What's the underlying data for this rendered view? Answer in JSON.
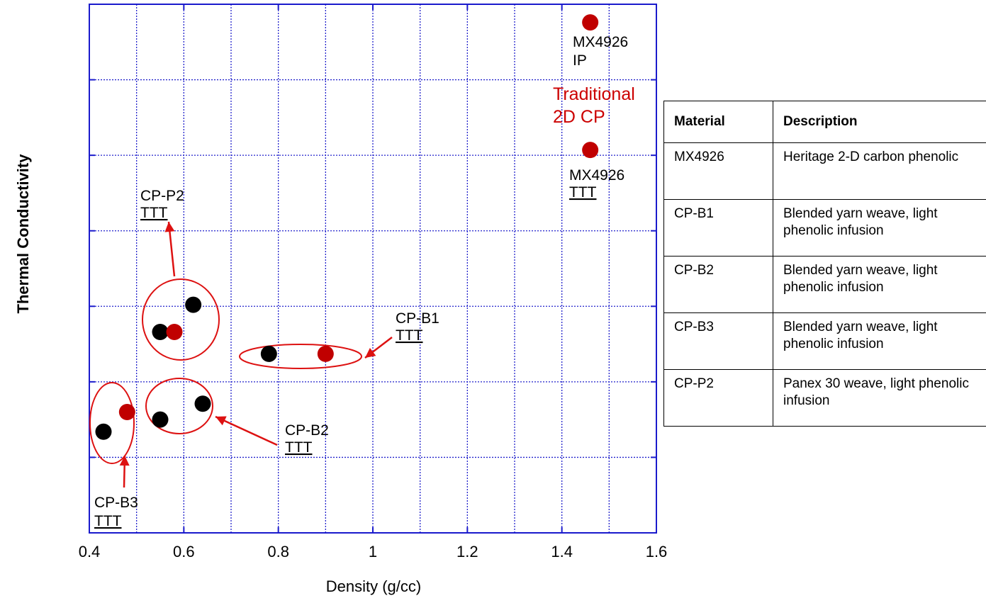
{
  "chart_data": {
    "type": "scatter",
    "xlabel": "Density (g/cc)",
    "ylabel": "Thermal Conductivity",
    "xlim": [
      0.4,
      1.6
    ],
    "ylim": [
      0,
      7
    ],
    "xticks": [
      0.4,
      0.6,
      0.8,
      1,
      1.2,
      1.4,
      1.6
    ],
    "xtick_labels": [
      "0.4",
      "0.6",
      "0.8",
      "1",
      "1.2",
      "1.4",
      "1.6"
    ],
    "grid": true,
    "y_tick_labels_shown": false,
    "series": [
      {
        "color": "#000000",
        "points": [
          {
            "x": 0.62,
            "y": 3.02
          },
          {
            "x": 0.55,
            "y": 2.66
          },
          {
            "x": 0.78,
            "y": 2.37
          },
          {
            "x": 0.64,
            "y": 1.71
          },
          {
            "x": 0.55,
            "y": 1.5
          },
          {
            "x": 0.43,
            "y": 1.34
          }
        ]
      },
      {
        "color": "#c00000",
        "points": [
          {
            "x": 1.46,
            "y": 6.76
          },
          {
            "x": 1.46,
            "y": 5.07
          },
          {
            "x": 0.58,
            "y": 2.66
          },
          {
            "x": 0.9,
            "y": 2.37
          },
          {
            "x": 0.48,
            "y": 1.6
          }
        ]
      }
    ],
    "annotations": [
      {
        "id": "mx-ip",
        "lines": [
          "MX4926",
          "IP"
        ],
        "color": "#000000",
        "underline_last": false
      },
      {
        "id": "traditional",
        "lines": [
          "Traditional",
          "2D CP"
        ],
        "color": "#cc0000",
        "underline_last": false
      },
      {
        "id": "mx-ttt",
        "lines": [
          "MX4926",
          "TTT"
        ],
        "color": "#000000",
        "underline_last": true
      },
      {
        "id": "cp-p2",
        "lines": [
          "CP-P2",
          "TTT"
        ],
        "color": "#000000",
        "underline_last": true
      },
      {
        "id": "cp-b1",
        "lines": [
          "CP-B1",
          "TTT"
        ],
        "color": "#000000",
        "underline_last": true
      },
      {
        "id": "cp-b2",
        "lines": [
          "CP-B2",
          "TTT"
        ],
        "color": "#000000",
        "underline_last": true
      },
      {
        "id": "cp-b3",
        "lines": [
          "CP-B3",
          "TTT"
        ],
        "color": "#000000",
        "underline_last": true
      }
    ],
    "table": {
      "headers": [
        "Material",
        "Description"
      ],
      "rows": [
        [
          "MX4926",
          "Heritage 2-D carbon phenolic"
        ],
        [
          "CP-B1",
          "Blended yarn weave, light phenolic infusion"
        ],
        [
          "CP-B2",
          "Blended yarn weave, light phenolic infusion"
        ],
        [
          "CP-B3",
          "Blended yarn weave, light phenolic infusion"
        ],
        [
          "CP-P2",
          "Panex 30 weave, light phenolic infusion"
        ]
      ]
    }
  },
  "colors": {
    "grid": "#2222cc",
    "frame": "#1a1acc",
    "marker_black": "#000000",
    "marker_red": "#c00000",
    "highlight": "#dd1111"
  }
}
